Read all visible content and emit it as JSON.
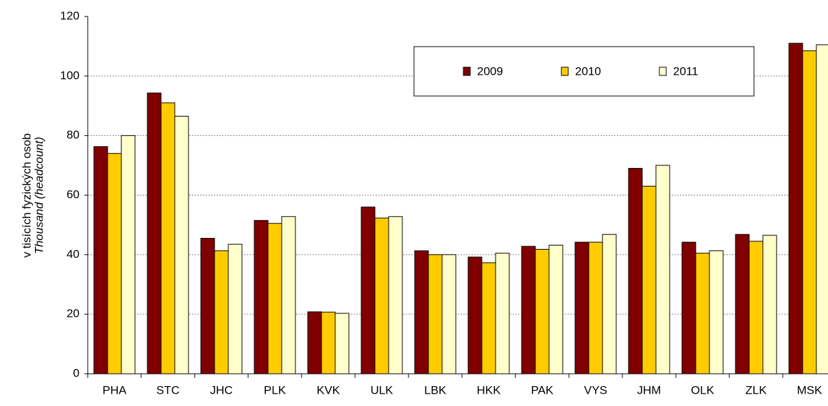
{
  "chart_data": {
    "type": "bar",
    "y_label": "v tisících fyzických osob",
    "y_label_2": "Thousand (headcount)",
    "categories": [
      "PHA",
      "STC",
      "JHC",
      "PLK",
      "KVK",
      "ULK",
      "LBK",
      "HKK",
      "PAK",
      "VYS",
      "JHM",
      "OLK",
      "ZLK",
      "MSK"
    ],
    "series": [
      {
        "name": "2009",
        "color": "#800000",
        "values": [
          76.3,
          94.3,
          45.5,
          51.5,
          20.8,
          56,
          41.3,
          39.2,
          42.8,
          44.2,
          69,
          44.2,
          46.8,
          111
        ]
      },
      {
        "name": "2010",
        "color": "#ffcc00",
        "values": [
          74,
          91,
          41.3,
          50.5,
          20.7,
          52.3,
          40,
          37.3,
          41.8,
          44.2,
          63,
          40.5,
          44.5,
          108.5
        ]
      },
      {
        "name": "2011",
        "color": "#ffffcc",
        "values": [
          80,
          86.5,
          43.5,
          52.8,
          20.3,
          52.8,
          40,
          40.5,
          43.2,
          46.8,
          70,
          41.3,
          46.5,
          110.5
        ]
      }
    ],
    "ylim": [
      0,
      120
    ],
    "yticks": [
      0,
      20,
      40,
      60,
      80,
      100,
      120
    ],
    "grid": true,
    "legend": "top-right"
  }
}
